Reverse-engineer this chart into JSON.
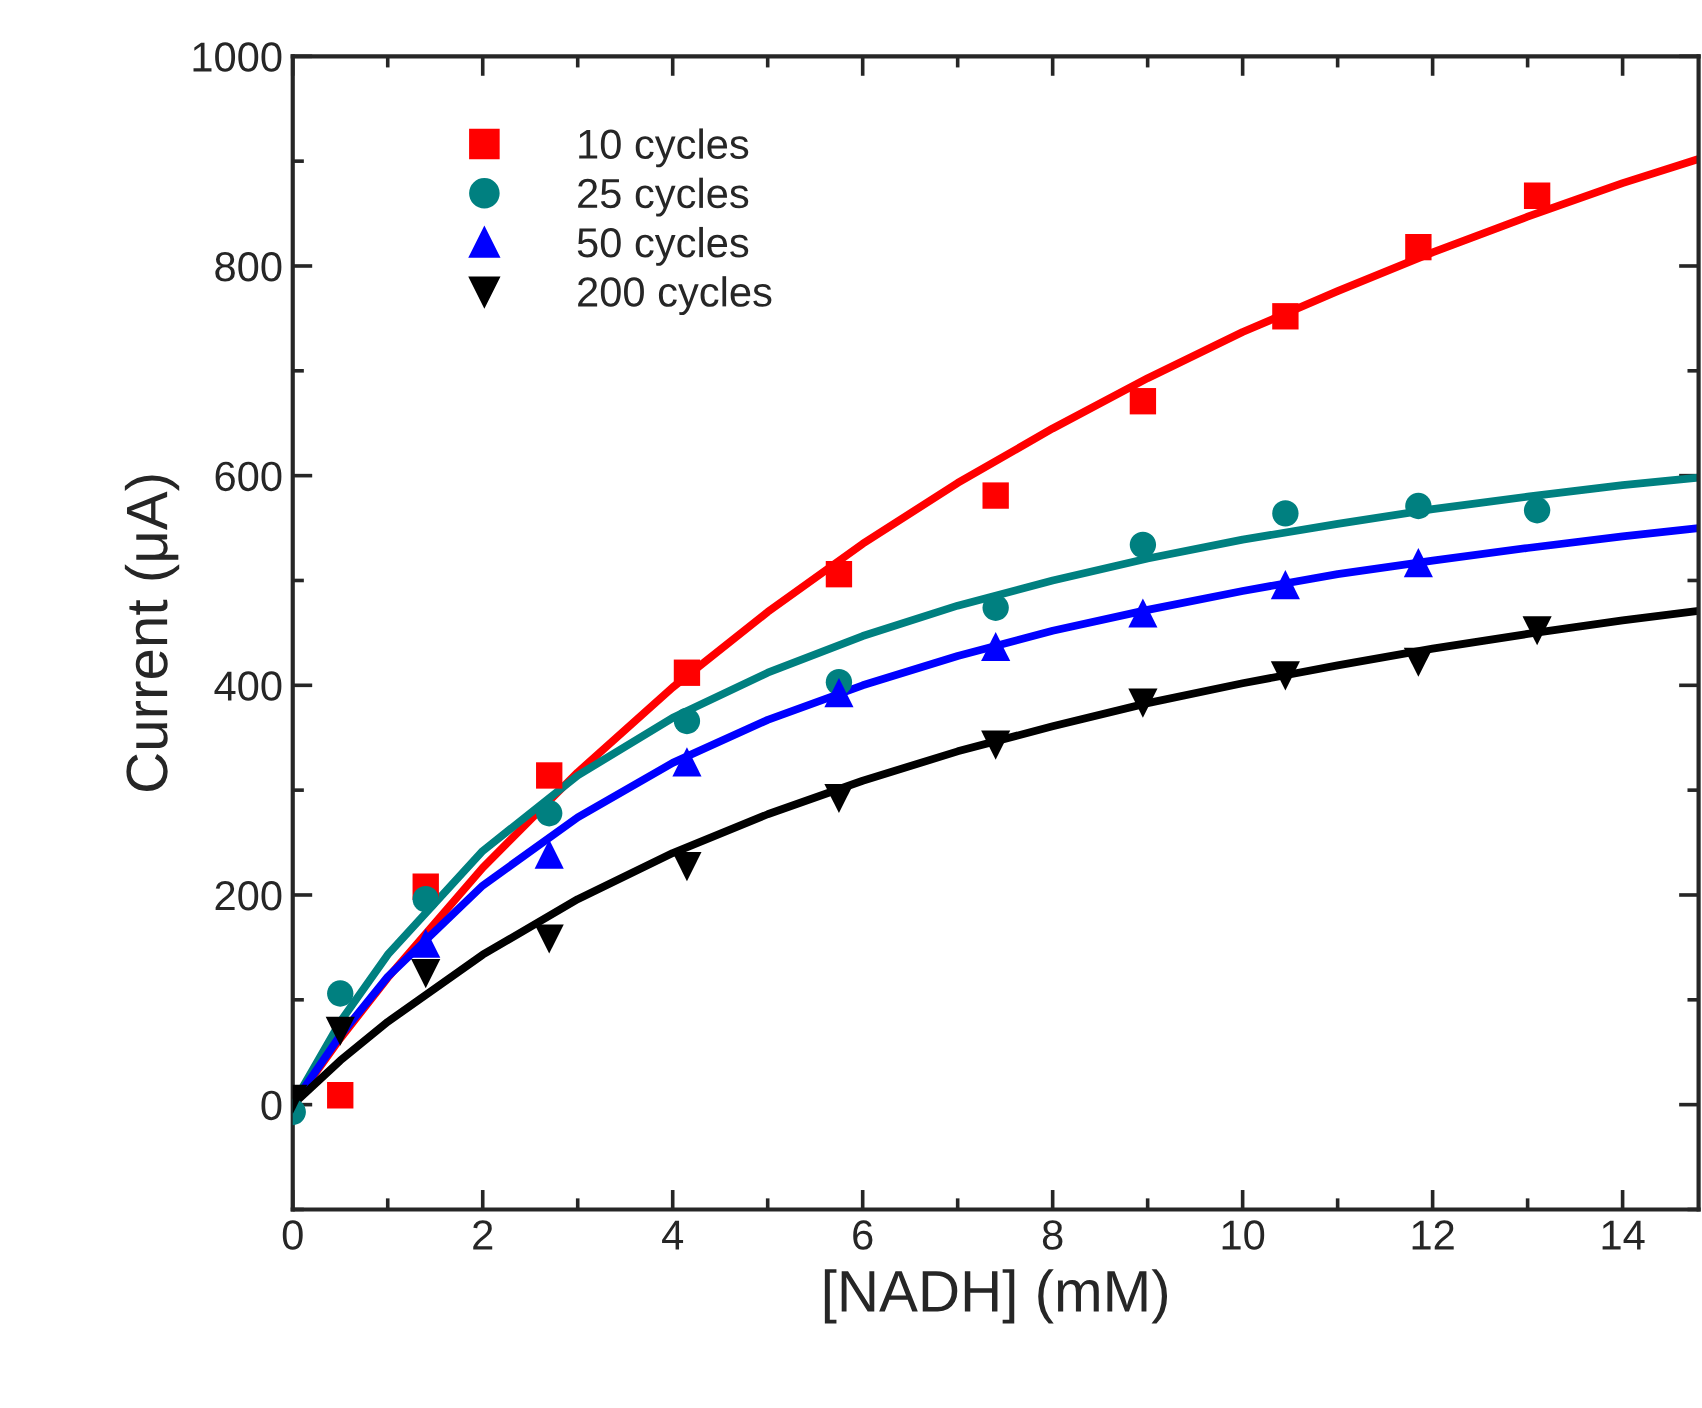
{
  "chart_data": {
    "type": "scatter",
    "xlabel": "[NADH] (mM)",
    "ylabel": "Current (μA)",
    "xlim": [
      0,
      14.8
    ],
    "xticks": [
      0,
      2,
      4,
      6,
      8,
      10,
      12,
      14
    ],
    "ylim": [
      -100,
      1000
    ],
    "yticks": [
      0,
      200,
      400,
      600,
      800,
      1000
    ],
    "legend": "top left",
    "grid": false,
    "x": [
      0,
      0.5,
      1.4,
      2.7,
      4.15,
      5.75,
      7.4,
      8.95,
      10.45,
      11.85,
      13.1
    ],
    "series": [
      {
        "name": "10 cycles",
        "marker": "square",
        "color": "#ff0000",
        "values": [
          null,
          9,
          208,
          314,
          412,
          506,
          581,
          671,
          752,
          818,
          867
        ]
      },
      {
        "name": "25 cycles",
        "marker": "circle",
        "color": "#008080",
        "values": [
          -7,
          106,
          196,
          278,
          366,
          403,
          474,
          534,
          564,
          571,
          567
        ]
      },
      {
        "name": "50 cycles",
        "marker": "triangle",
        "color": "#0000ff",
        "values": [
          null,
          null,
          154,
          239,
          327,
          393,
          437,
          469,
          496,
          517,
          null
        ]
      },
      {
        "name": "200 cycles",
        "marker": "triangle_down",
        "color": "#000000",
        "values": [
          5,
          70,
          125,
          158,
          227,
          292,
          343,
          383,
          409,
          422,
          452
        ]
      },
      {
        "type": "line",
        "color": "#ff0000",
        "x": [
          0,
          0.5,
          1,
          2,
          3,
          4,
          5,
          6,
          7,
          8,
          9,
          10,
          11,
          12,
          13,
          14,
          14.8
        ],
        "values": [
          0,
          63,
          121,
          226,
          317,
          398,
          470,
          535,
          593,
          645,
          693,
          737,
          776,
          813,
          847,
          879,
          902
        ]
      },
      {
        "type": "line",
        "color": "#008080",
        "x": [
          0,
          0.5,
          1,
          2,
          3,
          4,
          5,
          6,
          7,
          8,
          9,
          10,
          11,
          12,
          13,
          14,
          14.8
        ],
        "values": [
          0,
          79,
          143,
          242,
          314,
          369,
          412,
          447,
          476,
          500,
          521,
          539,
          554,
          568,
          580,
          591,
          598
        ]
      },
      {
        "type": "line",
        "color": "#0000ff",
        "x": [
          0,
          0.5,
          1,
          2,
          3,
          4,
          5,
          6,
          7,
          8,
          9,
          10,
          11,
          12,
          13,
          14,
          14.8
        ],
        "values": [
          0,
          66,
          122,
          209,
          274,
          326,
          367,
          400,
          428,
          452,
          472,
          490,
          506,
          519,
          531,
          542,
          550
        ]
      },
      {
        "type": "line",
        "color": "#000000",
        "x": [
          0,
          0.5,
          1,
          2,
          3,
          4,
          5,
          6,
          7,
          8,
          9,
          10,
          11,
          12,
          13,
          14,
          14.8
        ],
        "values": [
          0,
          42,
          79,
          143,
          196,
          240,
          277,
          309,
          337,
          361,
          383,
          402,
          419,
          435,
          449,
          462,
          471
        ]
      }
    ]
  }
}
